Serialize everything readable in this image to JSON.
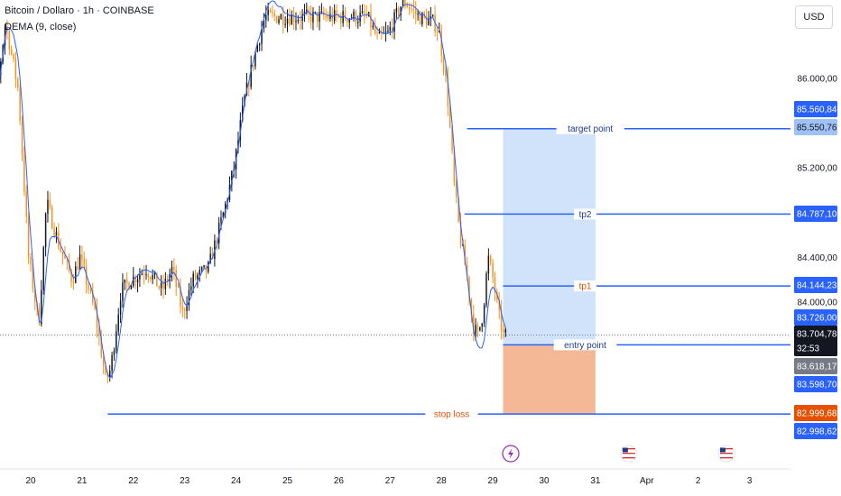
{
  "header": {
    "symbol_line": "Bitcoin / Dollaro · 1h · COINBASE",
    "indicator_line": "DEMA (9, close)"
  },
  "currency_button": "USD",
  "colors": {
    "up": "#131722",
    "down": "#f7931a",
    "dema": "#2962ff",
    "level_line": "#2962ff",
    "target_zone": "#d0e3fb",
    "stop_zone": "#f5b896",
    "stop_loss_label": "#e65100",
    "level_badge": "#2962ff",
    "last_price_badge": "#131722",
    "prev_close_badge": "#787b86"
  },
  "chart_data": {
    "type": "candlestick",
    "ylim": [
      82700,
      86550
    ],
    "price_axis_ticks": [
      "86.000,00",
      "85.200,00",
      "84.400,00",
      "84.000,00"
    ],
    "time_axis_labels": [
      "20",
      "21",
      "22",
      "23",
      "24",
      "25",
      "26",
      "27",
      "28",
      "29",
      "30",
      "31",
      "Apr",
      "2",
      "3"
    ],
    "price_path": [
      [
        19.0,
        84700
      ],
      [
        19.3,
        85600
      ],
      [
        19.55,
        86500
      ],
      [
        19.8,
        85900
      ],
      [
        20.0,
        84400
      ],
      [
        20.2,
        83800
      ],
      [
        20.35,
        84900
      ],
      [
        20.6,
        84500
      ],
      [
        20.85,
        84200
      ],
      [
        21.0,
        84400
      ],
      [
        21.3,
        83900
      ],
      [
        21.5,
        83300
      ],
      [
        21.6,
        83400
      ],
      [
        21.8,
        84100
      ],
      [
        22.0,
        84200
      ],
      [
        22.3,
        84300
      ],
      [
        22.6,
        84100
      ],
      [
        22.8,
        84300
      ],
      [
        23.0,
        83900
      ],
      [
        23.2,
        84200
      ],
      [
        23.5,
        84300
      ],
      [
        23.8,
        84800
      ],
      [
        24.0,
        85200
      ],
      [
        24.2,
        85800
      ],
      [
        24.4,
        86200
      ],
      [
        24.6,
        86550
      ],
      [
        25.0,
        86550
      ],
      [
        26.0,
        86550
      ],
      [
        26.6,
        86550
      ],
      [
        26.8,
        86350
      ],
      [
        27.0,
        86400
      ],
      [
        27.3,
        86700
      ],
      [
        27.6,
        86550
      ],
      [
        27.9,
        86500
      ],
      [
        28.0,
        86400
      ],
      [
        28.15,
        85900
      ],
      [
        28.3,
        85000
      ],
      [
        28.4,
        84600
      ],
      [
        28.55,
        84200
      ],
      [
        28.65,
        83800
      ],
      [
        28.75,
        83700
      ],
      [
        28.85,
        83900
      ],
      [
        28.95,
        84400
      ],
      [
        29.05,
        84200
      ],
      [
        29.15,
        83900
      ],
      [
        29.25,
        83700
      ]
    ],
    "levels": [
      {
        "name": "target point",
        "value": 85550.76,
        "badge": "85.550,76",
        "label_color": "#1e3a8a"
      },
      {
        "name": "tp2",
        "value": 84787.1,
        "badge": "84.787,10",
        "label_color": "#1e3a8a"
      },
      {
        "name": "tp1",
        "value": 84144.23,
        "badge": "84.144,23",
        "label_color": "#e65100"
      },
      {
        "name": "entry point",
        "value": 83618.17,
        "badge": "83.618,17",
        "label_color": "#1e3a8a"
      },
      {
        "name": "stop loss",
        "value": 82998.62,
        "badge": "82.998,62",
        "label_color": "#e65100"
      }
    ],
    "position": {
      "entry": 83618.17,
      "target": 85550.76,
      "stop": 82999.68,
      "x_start": 29.2,
      "x_end": 31.0
    },
    "axis_badges": [
      {
        "value": 85560.84,
        "text": "85.560,84",
        "kind": "level"
      },
      {
        "value": 85550.76,
        "text": "85.550,76",
        "kind": "level-light"
      },
      {
        "value": 84787.1,
        "text": "84.787,10",
        "kind": "level"
      },
      {
        "value": 84144.23,
        "text": "84.144,23",
        "kind": "level"
      },
      {
        "value": 83726.0,
        "text": "83.726,00",
        "kind": "level"
      },
      {
        "value": 83704.78,
        "text": "83.704,78",
        "kind": "last"
      },
      {
        "value": 83610.0,
        "text": "32:53",
        "kind": "countdown"
      },
      {
        "value": 83618.17,
        "text": "83.618,17",
        "kind": "prev-close"
      },
      {
        "value": 83598.7,
        "text": "83.598,70",
        "kind": "level"
      },
      {
        "value": 82999.68,
        "text": "82.999,68",
        "kind": "stop"
      },
      {
        "value": 82998.62,
        "text": "82.998,62",
        "kind": "level"
      }
    ],
    "last_price": 83704.78,
    "countdown": "32:53",
    "events": [
      {
        "x": 29.35,
        "icon": "lightning-icon"
      },
      {
        "x": 31.65,
        "icon": "us-flag-icon"
      },
      {
        "x": 33.55,
        "icon": "us-flag-icon"
      }
    ]
  }
}
